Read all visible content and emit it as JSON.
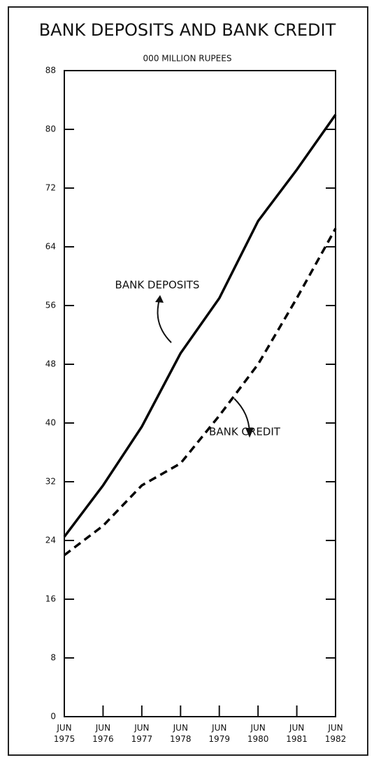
{
  "chart_data": {
    "type": "line",
    "title": "BANK DEPOSITS AND BANK CREDIT",
    "subtitle": "000 MILLION RUPEES",
    "categories": [
      "JUN 1975",
      "JUN 1976",
      "JUN 1977",
      "JUN 1978",
      "JUN 1979",
      "JUN 1980",
      "JUN 1981",
      "JUN 1982"
    ],
    "series": [
      {
        "name": "BANK DEPOSITS",
        "color": "#000000",
        "dash": false,
        "values": [
          24.5,
          31.5,
          39.5,
          49.5,
          57,
          67.5,
          74.5,
          82
        ]
      },
      {
        "name": "BANK CREDIT",
        "color": "#000000",
        "dash": true,
        "values": [
          22,
          26,
          31.5,
          34.5,
          41,
          48,
          57,
          66.5
        ]
      }
    ],
    "ylim": [
      0,
      88
    ],
    "yticks": [
      0,
      8,
      16,
      24,
      32,
      40,
      48,
      56,
      64,
      72,
      80,
      88
    ]
  }
}
